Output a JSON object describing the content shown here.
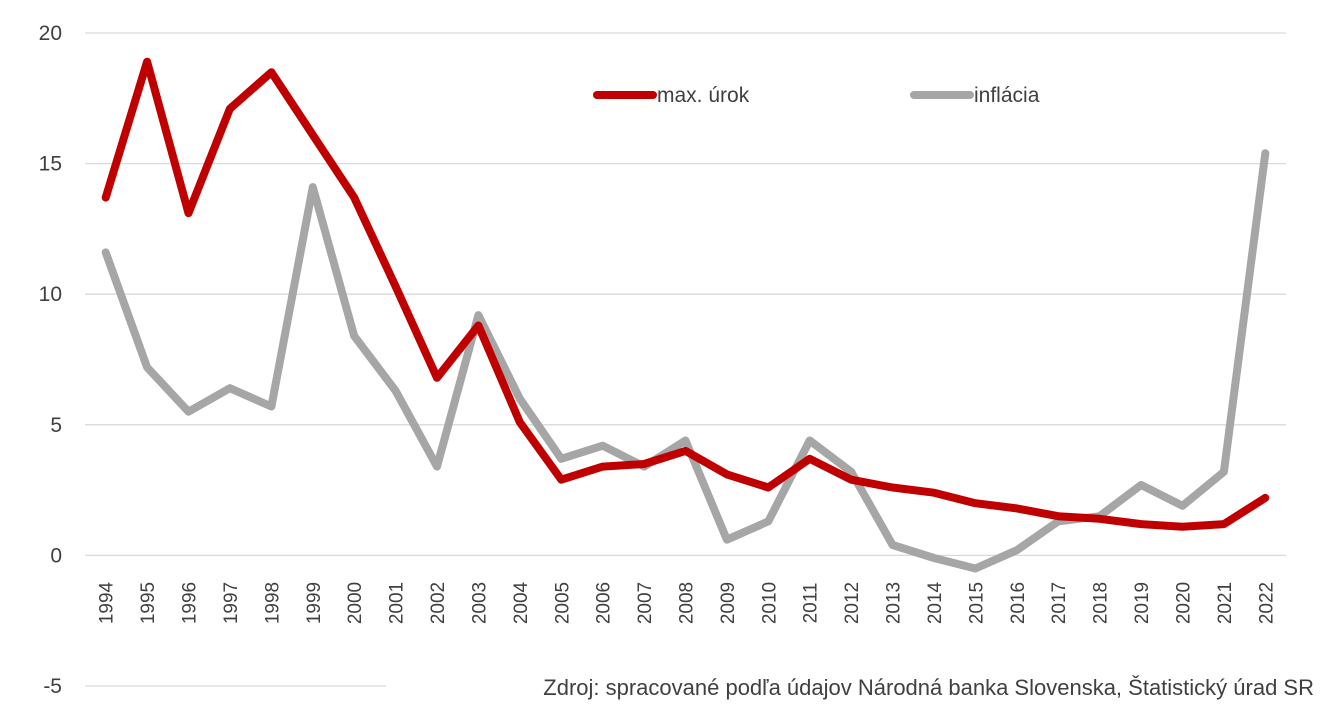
{
  "chart_data": {
    "type": "line",
    "title": "",
    "xlabel": "",
    "ylabel": "",
    "ylim": [
      -5,
      20
    ],
    "yticks": [
      20,
      15,
      10,
      5,
      0,
      -5
    ],
    "grid": true,
    "legend_position": "top-center",
    "x": [
      "1994",
      "1995",
      "1996",
      "1997",
      "1998",
      "1999",
      "2000",
      "2001",
      "2002",
      "2003",
      "2004",
      "2005",
      "2006",
      "2007",
      "2008",
      "2009",
      "2010",
      "2011",
      "2012",
      "2013",
      "2014",
      "2015",
      "2016",
      "2017",
      "2018",
      "2019",
      "2020",
      "2021",
      "2022"
    ],
    "series": [
      {
        "name": "max. úrok",
        "color": "#C00000",
        "values": [
          13.7,
          18.9,
          13.1,
          17.1,
          18.5,
          16.1,
          13.7,
          10.3,
          6.8,
          8.8,
          5.1,
          2.9,
          3.4,
          3.5,
          4.0,
          3.1,
          2.6,
          3.7,
          2.9,
          2.6,
          2.4,
          2.0,
          1.8,
          1.5,
          1.4,
          1.2,
          1.1,
          1.2,
          2.2
        ]
      },
      {
        "name": "inflácia",
        "color": "#A6A6A6",
        "values": [
          11.6,
          7.2,
          5.5,
          6.4,
          5.7,
          14.1,
          8.4,
          6.3,
          3.4,
          9.2,
          6.0,
          3.7,
          4.2,
          3.4,
          4.4,
          0.6,
          1.3,
          4.4,
          3.2,
          0.4,
          -0.1,
          -0.5,
          0.2,
          1.3,
          1.5,
          2.7,
          1.9,
          3.2,
          15.4
        ]
      }
    ],
    "source": "Zdroj: spracované podľa údajov Národná banka Slovenska, Štatistický úrad SR"
  }
}
